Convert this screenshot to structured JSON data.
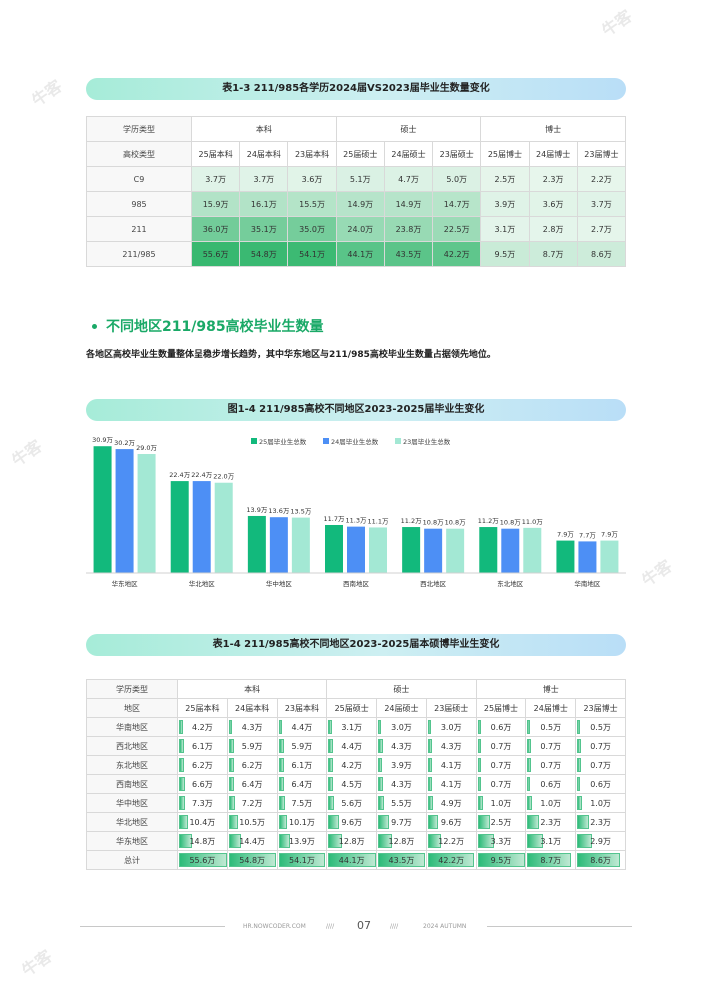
{
  "table13": {
    "title": "表1-3 211/985各学历2024届VS2023届毕业生数量变化",
    "row1": {
      "label": "学历类型",
      "groups": [
        "本科",
        "硕士",
        "博士"
      ]
    },
    "row2": {
      "label": "高校类型",
      "cols": [
        "25届本科",
        "24届本科",
        "23届本科",
        "25届硕士",
        "24届硕士",
        "23届硕士",
        "25届博士",
        "24届博士",
        "23届博士"
      ]
    },
    "rows": [
      {
        "name": "C9",
        "cells": [
          "3.7万",
          "3.7万",
          "3.6万",
          "5.1万",
          "4.7万",
          "5.0万",
          "2.5万",
          "2.3万",
          "2.2万"
        ]
      },
      {
        "name": "985",
        "cells": [
          "15.9万",
          "16.1万",
          "15.5万",
          "14.9万",
          "14.9万",
          "14.7万",
          "3.9万",
          "3.6万",
          "3.7万"
        ]
      },
      {
        "name": "211",
        "cells": [
          "36.0万",
          "35.1万",
          "35.0万",
          "24.0万",
          "23.8万",
          "22.5万",
          "3.1万",
          "2.8万",
          "2.7万"
        ]
      },
      {
        "name": "211/985",
        "cells": [
          "55.6万",
          "54.8万",
          "54.1万",
          "44.1万",
          "43.5万",
          "42.2万",
          "9.5万",
          "8.7万",
          "8.6万"
        ]
      }
    ]
  },
  "section": {
    "heading": "不同地区211/985高校毕业生数量",
    "description": "各地区高校毕业生数量整体呈稳步增长趋势，其中华东地区与211/985高校毕业生数量占据领先地位。"
  },
  "figure14": {
    "title": "图1-4 211/985高校不同地区2023-2025届毕业生变化"
  },
  "chart_data": {
    "type": "bar",
    "categories": [
      "华东地区",
      "华北地区",
      "华中地区",
      "西南地区",
      "西北地区",
      "东北地区",
      "华南地区"
    ],
    "series": [
      {
        "name": "25届毕业生总数",
        "values": [
          30.9,
          22.4,
          13.9,
          11.7,
          11.2,
          11.2,
          7.9
        ],
        "color": "#12b97c"
      },
      {
        "name": "24届毕业生总数",
        "values": [
          30.2,
          22.4,
          13.6,
          11.3,
          10.8,
          10.8,
          7.7
        ],
        "color": "#4d8ff5"
      },
      {
        "name": "23届毕业生总数",
        "values": [
          29.0,
          22.0,
          13.5,
          11.1,
          10.8,
          11.0,
          7.9
        ],
        "color": "#a3e8d4"
      }
    ],
    "value_suffix": "万",
    "legend_position": "top-center",
    "ylim": [
      0,
      32
    ],
    "grid": false
  },
  "table14": {
    "title": "表1-4 211/985高校不同地区2023-2025届本硕博毕业生变化",
    "row1": {
      "label": "学历类型",
      "groups": [
        "本科",
        "硕士",
        "博士"
      ]
    },
    "row2": {
      "label": "地区",
      "cols": [
        "25届本科",
        "24届本科",
        "23届本科",
        "25届硕士",
        "24届硕士",
        "23届硕士",
        "25届博士",
        "24届博士",
        "23届博士"
      ]
    },
    "rows": [
      {
        "name": "华南地区",
        "cells": [
          "4.2万",
          "4.3万",
          "4.4万",
          "3.1万",
          "3.0万",
          "3.0万",
          "0.6万",
          "0.5万",
          "0.5万"
        ]
      },
      {
        "name": "西北地区",
        "cells": [
          "6.1万",
          "5.9万",
          "5.9万",
          "4.4万",
          "4.3万",
          "4.3万",
          "0.7万",
          "0.7万",
          "0.7万"
        ]
      },
      {
        "name": "东北地区",
        "cells": [
          "6.2万",
          "6.2万",
          "6.1万",
          "4.2万",
          "3.9万",
          "4.1万",
          "0.7万",
          "0.7万",
          "0.7万"
        ]
      },
      {
        "name": "西南地区",
        "cells": [
          "6.6万",
          "6.4万",
          "6.4万",
          "4.5万",
          "4.3万",
          "4.1万",
          "0.7万",
          "0.6万",
          "0.6万"
        ]
      },
      {
        "name": "华中地区",
        "cells": [
          "7.3万",
          "7.2万",
          "7.5万",
          "5.6万",
          "5.5万",
          "4.9万",
          "1.0万",
          "1.0万",
          "1.0万"
        ]
      },
      {
        "name": "华北地区",
        "cells": [
          "10.4万",
          "10.5万",
          "10.1万",
          "9.6万",
          "9.7万",
          "9.6万",
          "2.5万",
          "2.3万",
          "2.3万"
        ]
      },
      {
        "name": "华东地区",
        "cells": [
          "14.8万",
          "14.4万",
          "13.9万",
          "12.8万",
          "12.8万",
          "12.2万",
          "3.3万",
          "3.1万",
          "2.9万"
        ]
      },
      {
        "name": "总计",
        "cells": [
          "55.6万",
          "54.8万",
          "54.1万",
          "44.1万",
          "43.5万",
          "42.2万",
          "9.5万",
          "8.7万",
          "8.6万"
        ]
      }
    ]
  },
  "footer": {
    "site": "HR.NOWCODER.COM",
    "sep_left": "////",
    "page": "07",
    "sep_right": "////",
    "edition": "2024 AUTUMN"
  },
  "watermark": {
    "text": "牛客"
  },
  "colors": {
    "green": "#1aa967",
    "heat_max": "#2dbb79",
    "heat_min": "#ffffff"
  }
}
